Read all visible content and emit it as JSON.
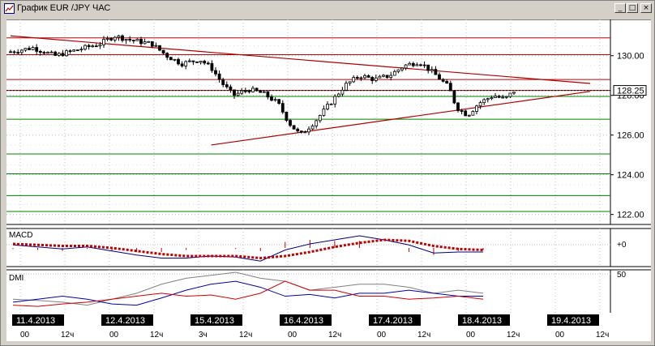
{
  "window": {
    "title": "График EUR /JPY  ЧАС",
    "minimize_glyph": "_",
    "maximize_glyph": "□",
    "close_glyph": "×"
  },
  "panels": {
    "price": {
      "last_price_label": "128.25"
    },
    "macd": {
      "label": "MACD",
      "zero_label": "+0"
    },
    "dmi": {
      "label": "DMI",
      "level_label": "50"
    }
  },
  "colors": {
    "trendline": "#b00000",
    "support_line": "#008000",
    "resistance_line": "#c00000",
    "macd_signal": "#c00000",
    "macd_line": "#000080",
    "dmi_plus": "#0000b0",
    "dmi_minus": "#d00000",
    "adx": "#808080"
  },
  "time_axis": {
    "dates": [
      "11.4.2013",
      "12.4.2013",
      "15.4.2013",
      "16.4.2013",
      "17.4.2013",
      "18.4.2013",
      "19.4.2013"
    ],
    "hours": [
      [
        "00",
        "12ч"
      ],
      [
        "00",
        "12ч"
      ],
      [
        "3ч",
        "12ч"
      ],
      [
        "00",
        "12ч"
      ],
      [
        "00",
        "12ч"
      ],
      [
        "00",
        "12ч"
      ],
      [
        "00",
        "12ч"
      ]
    ]
  },
  "chart_data": [
    {
      "type": "candlestick",
      "title": "График EUR /JPY  ЧАС",
      "ylim": [
        121.7,
        131.5
      ],
      "y_ticks": [
        "130.00",
        "128.00",
        "126.00",
        "124.00",
        "122.00"
      ],
      "tick_values": [
        130,
        128,
        126,
        124,
        122
      ],
      "last_price": 128.25,
      "horizontal_levels": {
        "red": [
          130.9,
          130.05,
          128.8,
          128.25
        ],
        "green": [
          127.95,
          126.8,
          125.05,
          124.05,
          122.95,
          122.15
        ]
      },
      "trendlines": [
        {
          "from": [
            "11.4.2013 00",
            131.0
          ],
          "to": [
            "19.4.2013 12",
            128.6
          ]
        },
        {
          "from": [
            "15.4.2013 06",
            125.5
          ],
          "to": [
            "19.4.2013 12",
            128.2
          ]
        }
      ],
      "close_path": [
        [
          "11.4.2013 00",
          130.2
        ],
        [
          "11.4.2013 06",
          130.4
        ],
        [
          "11.4.2013 12",
          130.0
        ],
        [
          "11.4.2013 18",
          130.3
        ],
        [
          "12.4.2013 00",
          130.6
        ],
        [
          "12.4.2013 04",
          131.0
        ],
        [
          "12.4.2013 08",
          130.8
        ],
        [
          "12.4.2013 14",
          130.6
        ],
        [
          "12.4.2013 18",
          130.0
        ],
        [
          "12.4.2013 22",
          129.6
        ],
        [
          "15.4.2013 03",
          129.8
        ],
        [
          "15.4.2013 06",
          129.4
        ],
        [
          "15.4.2013 09",
          128.6
        ],
        [
          "15.4.2013 12",
          128.0
        ],
        [
          "15.4.2013 16",
          128.3
        ],
        [
          "15.4.2013 20",
          128.1
        ],
        [
          "16.4.2013 00",
          127.6
        ],
        [
          "16.4.2013 03",
          126.6
        ],
        [
          "16.4.2013 06",
          126.0
        ],
        [
          "16.4.2013 10",
          126.7
        ],
        [
          "16.4.2013 14",
          127.6
        ],
        [
          "16.4.2013 18",
          128.5
        ],
        [
          "16.4.2013 22",
          129.0
        ],
        [
          "17.4.2013 02",
          128.8
        ],
        [
          "17.4.2013 06",
          129.0
        ],
        [
          "17.4.2013 10",
          129.5
        ],
        [
          "17.4.2013 14",
          129.7
        ],
        [
          "17.4.2013 18",
          129.1
        ],
        [
          "17.4.2013 22",
          128.4
        ],
        [
          "18.4.2013 00",
          127.4
        ],
        [
          "18.4.2013 03",
          127.0
        ],
        [
          "18.4.2013 06",
          127.6
        ],
        [
          "18.4.2013 10",
          128.0
        ],
        [
          "18.4.2013 13",
          127.8
        ],
        [
          "18.4.2013 16",
          128.3
        ]
      ]
    },
    {
      "type": "line",
      "title": "MACD",
      "series": [
        {
          "name": "MACD",
          "values": [
            0.3,
            0.1,
            -0.1,
            0.1,
            -0.3,
            -0.7,
            -1.0,
            -1.0,
            -0.8,
            -0.9,
            -1.3,
            -0.2,
            0.4,
            0.8,
            1.2,
            0.8,
            0.3,
            -0.5,
            -0.4,
            -0.4
          ]
        },
        {
          "name": "",
          "values": [
            0.4,
            0.3,
            0.2,
            0.2,
            0.0,
            -0.3,
            -0.6,
            -0.8,
            -0.8,
            -0.8,
            -1.0,
            -0.8,
            -0.4,
            0.1,
            0.5,
            0.8,
            0.7,
            0.2,
            -0.1,
            -0.2
          ]
        }
      ]
    },
    {
      "type": "line",
      "title": "DMI",
      "y_ticks": [
        "50"
      ],
      "series": [
        {
          "name": "",
          "values": [
            10,
            8,
            12,
            15,
            20,
            25,
            30,
            25,
            27,
            20,
            30,
            50,
            35,
            35,
            25,
            25,
            20,
            22,
            25,
            20
          ]
        },
        {
          "name": "",
          "values": [
            15,
            20,
            25,
            20,
            12,
            10,
            22,
            35,
            45,
            50,
            40,
            25,
            28,
            22,
            30,
            30,
            35,
            30,
            25,
            25
          ]
        },
        {
          "name": "",
          "values": [
            20,
            18,
            15,
            10,
            20,
            30,
            45,
            55,
            60,
            65,
            55,
            50,
            35,
            40,
            45,
            45,
            40,
            30,
            35,
            30
          ]
        }
      ]
    }
  ]
}
